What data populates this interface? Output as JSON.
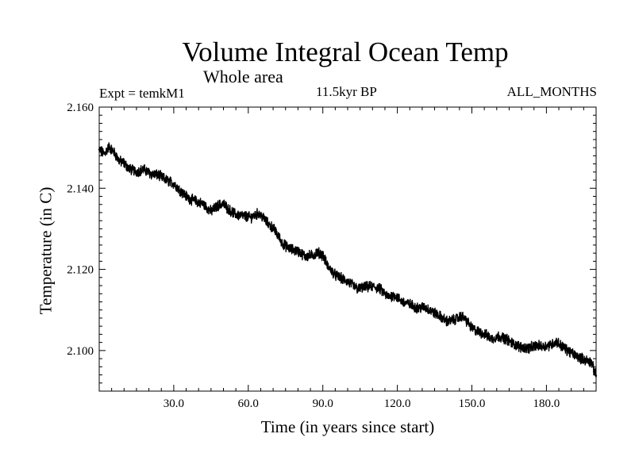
{
  "header": {
    "title": "Volume Integral Ocean Temp",
    "subtitle": "Whole area",
    "experiment": "Expt = temkM1",
    "period": "11.5kyr BP",
    "months": "ALL_MONTHS"
  },
  "chart_data": {
    "type": "line",
    "title": "Volume Integral Ocean Temp",
    "subtitle": "Whole area",
    "xlabel": "Time (in years since start)",
    "ylabel": "Temperature (in C)",
    "xlim": [
      0,
      200
    ],
    "ylim": [
      2.09,
      2.16
    ],
    "x_ticks": [
      30,
      60,
      90,
      120,
      150,
      180
    ],
    "x_tick_labels": [
      "30.0",
      "60.0",
      "90.0",
      "120.0",
      "150.0",
      "180.0"
    ],
    "y_ticks": [
      2.1,
      2.12,
      2.14,
      2.16
    ],
    "y_tick_labels": [
      "2.100",
      "2.120",
      "2.140",
      "2.160"
    ],
    "grid": false,
    "series": [
      {
        "name": "Volume integral ocean temperature",
        "x": [
          0,
          2,
          4,
          6,
          8,
          10,
          12,
          15,
          18,
          21,
          24,
          27,
          30,
          33,
          36,
          39,
          42,
          45,
          48,
          50,
          52,
          55,
          58,
          61,
          64,
          66,
          68,
          70,
          72,
          74,
          77,
          80,
          83,
          86,
          88,
          90,
          92,
          95,
          98,
          101,
          104,
          107,
          110,
          113,
          116,
          119,
          122,
          125,
          128,
          131,
          134,
          137,
          140,
          143,
          146,
          148,
          150,
          152,
          155,
          158,
          161,
          164,
          167,
          170,
          173,
          176,
          179,
          182,
          184,
          186,
          189,
          192,
          195,
          198,
          200
        ],
        "values": [
          2.1495,
          2.1485,
          2.1502,
          2.1488,
          2.1468,
          2.1462,
          2.1448,
          2.1441,
          2.1446,
          2.1435,
          2.1432,
          2.142,
          2.1412,
          2.1392,
          2.1375,
          2.1368,
          2.136,
          2.1343,
          2.1358,
          2.1362,
          2.1348,
          2.1335,
          2.1332,
          2.1328,
          2.1338,
          2.1328,
          2.1312,
          2.1302,
          2.1283,
          2.1262,
          2.125,
          2.1245,
          2.1232,
          2.1235,
          2.1242,
          2.1235,
          2.1208,
          2.1186,
          2.1176,
          2.1166,
          2.1152,
          2.1156,
          2.1158,
          2.1152,
          2.1133,
          2.1136,
          2.112,
          2.1114,
          2.1105,
          2.1107,
          2.1096,
          2.1085,
          2.1072,
          2.1076,
          2.1085,
          2.1072,
          2.1055,
          2.1048,
          2.1041,
          2.1029,
          2.1035,
          2.1028,
          2.1015,
          2.1008,
          2.1006,
          2.1012,
          2.101,
          2.1015,
          2.1022,
          2.1012,
          2.0998,
          2.0987,
          2.0978,
          2.0972,
          2.0938
        ]
      }
    ]
  }
}
